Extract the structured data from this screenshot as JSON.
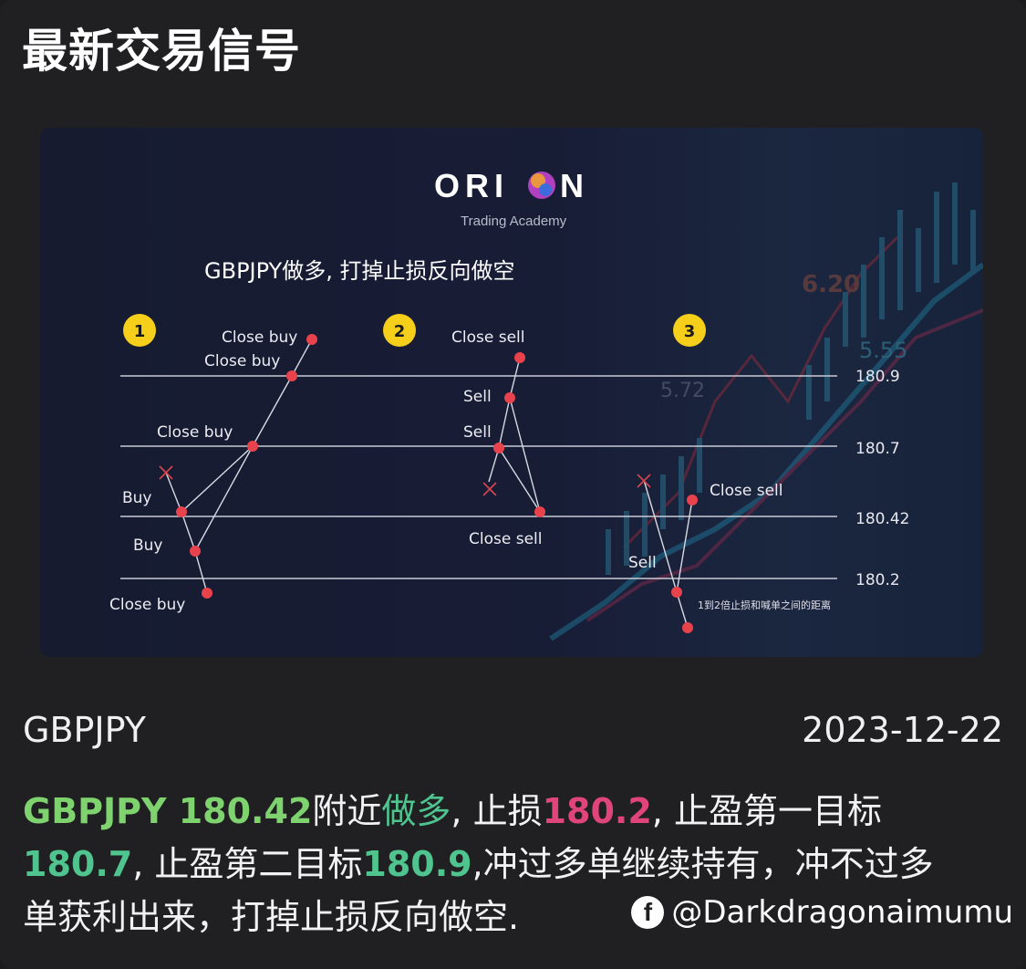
{
  "header": {
    "title": "最新交易信号"
  },
  "figure": {
    "brand_left": "ORI",
    "brand_right": "N",
    "brand_sub": "Trading Academy",
    "heading": "GBPJPY做多, 打掉止损反向做空",
    "steps": [
      "1",
      "2",
      "3"
    ],
    "levels": [
      "180.9",
      "180.7",
      "180.42",
      "180.2"
    ],
    "note": "1到2倍止损和喊单之间的距离",
    "labels": {
      "s1_close_buy_top": "Close buy",
      "s1_close_buy_2": "Close buy",
      "s1_close_buy_mid": "Close buy",
      "s1_buy_1": "Buy",
      "s1_buy_2": "Buy",
      "s1_close_buy_bottom": "Close buy",
      "s2_close_sell_top": "Close sell",
      "s2_sell_1": "Sell",
      "s2_sell_2": "Sell",
      "s2_close_sell_bottom": "Close sell",
      "s3_close_sell": "Close sell",
      "s3_sell": "Sell"
    },
    "bg_numbers": [
      "6.20",
      "5.55",
      "5.72"
    ]
  },
  "signal": {
    "pair": "GBPJPY",
    "date": "2023-12-22",
    "line1": {
      "pair_price": "GBPJPY 180.42",
      "near": "附近",
      "direction": "做多",
      "sl_label": ", 止损",
      "sl": "180.2",
      "tp1_label": ", 止盈第一目标"
    },
    "line2": {
      "tp1": "180.7",
      "tp2_label": ", 止盈第二目标",
      "tp2": "180.9",
      "rest": ",冲过多单继续持有，冲不过多"
    },
    "line3": {
      "text": "单获利出来，打掉止损反向做空."
    }
  },
  "watermark": {
    "icon": "facebook-icon",
    "handle": "@Darkdragonaimumu"
  },
  "colors": {
    "green": "#7ed36f",
    "teal": "#4fc48e",
    "red": "#e0457a",
    "dot": "#e8434c",
    "badge": "#f5cf1a"
  }
}
